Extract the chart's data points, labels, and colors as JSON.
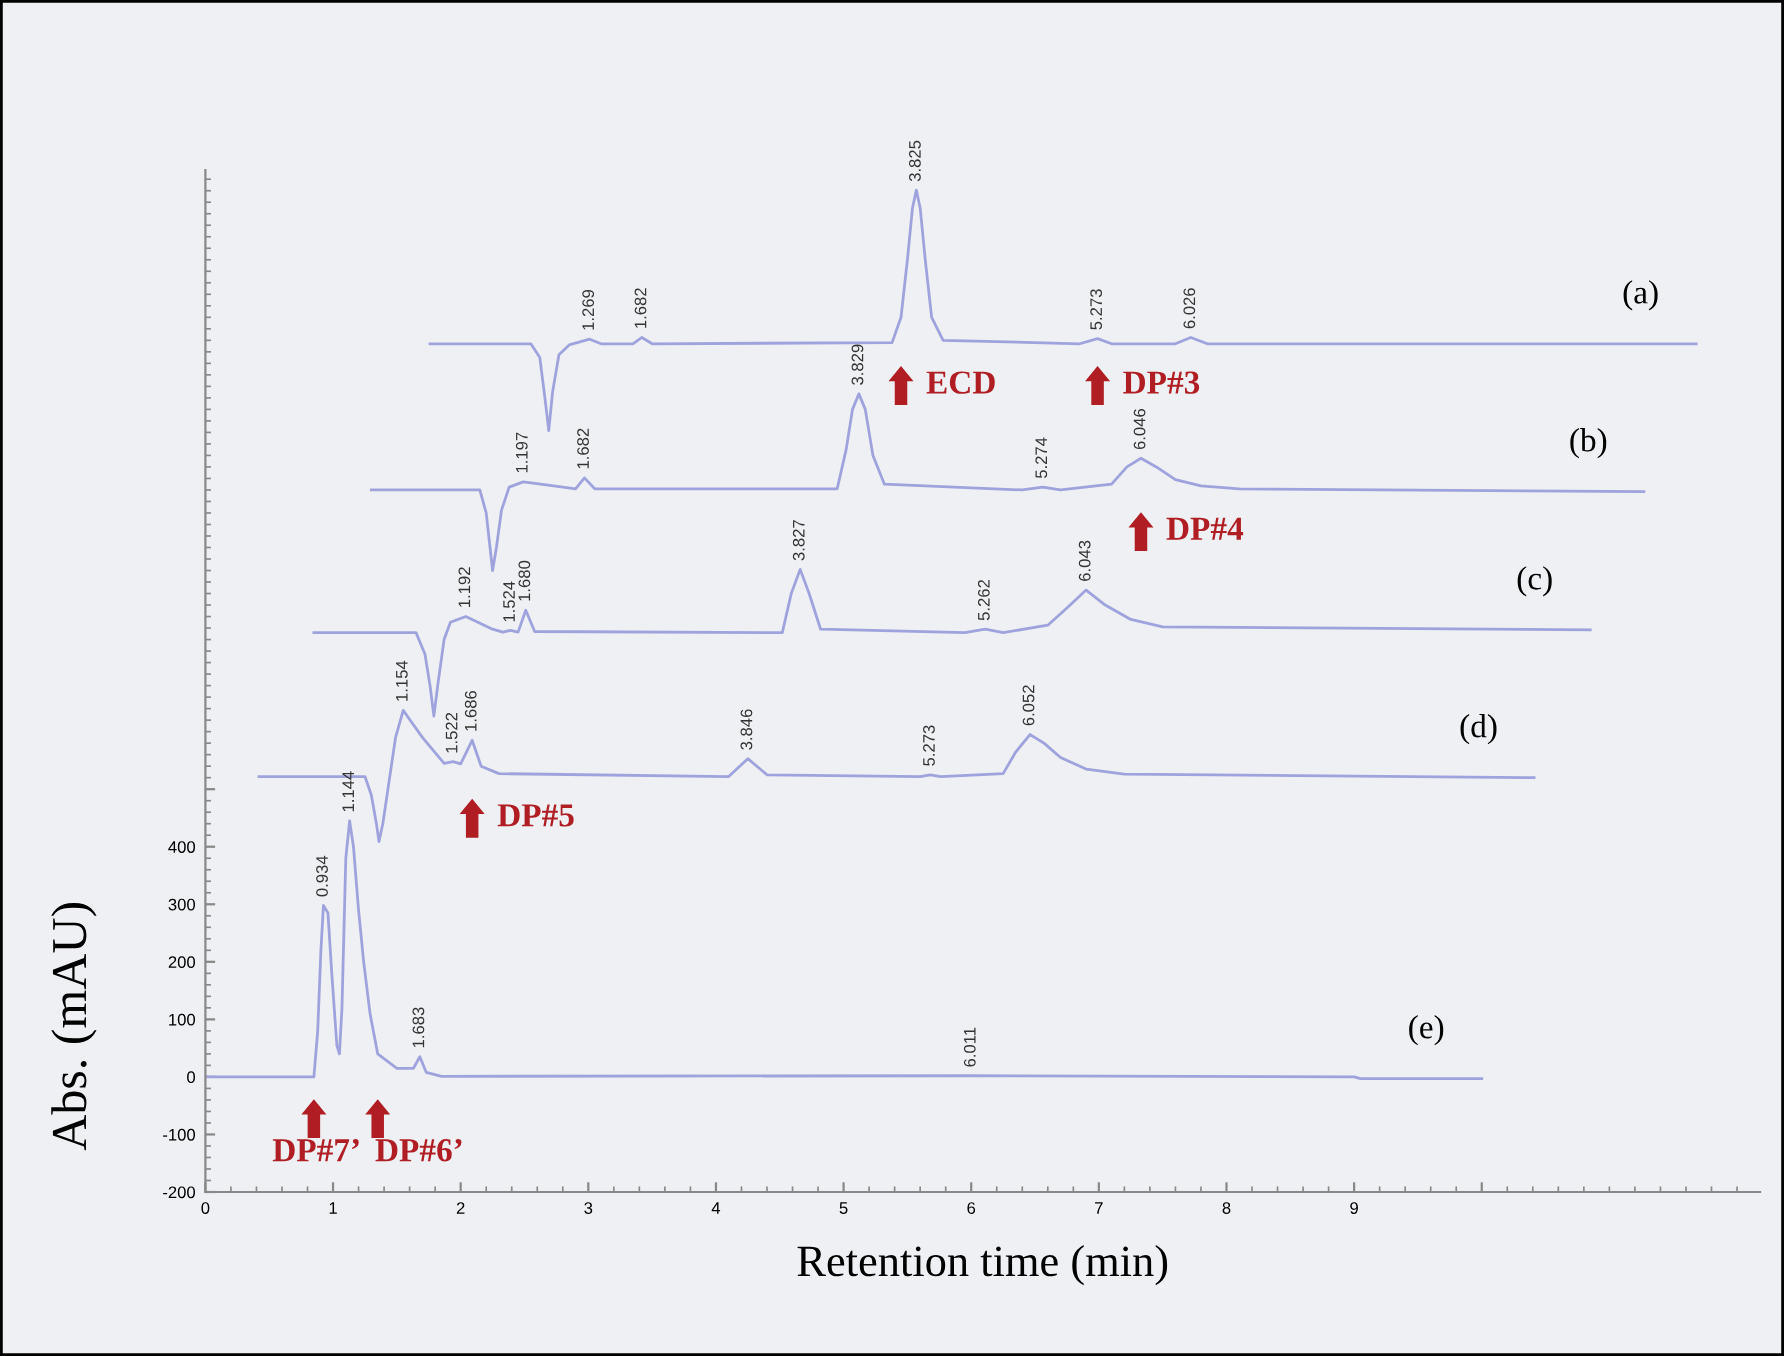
{
  "chart_data": {
    "type": "line",
    "xlabel": "Retention time (min)",
    "ylabel": "Abs. (mAU)",
    "xlim": [
      0,
      12.18
    ],
    "ylim": [
      -200,
      1576
    ],
    "xticks": [
      0,
      1,
      2,
      3,
      4,
      5,
      6,
      7,
      8,
      9,
      {
        "value": 10,
        "label": null
      }
    ],
    "yticks": [
      -200,
      -100,
      0,
      100,
      200,
      300,
      400,
      {
        "value": 500,
        "label": null
      }
    ],
    "grid": false,
    "legend": false,
    "marker": "none",
    "line_style": "solid",
    "series": [
      {
        "name": "(a)",
        "color": "#9fa3dd",
        "x": [
          1.76,
          2.55,
          2.62,
          2.66,
          2.69,
          2.72,
          2.77,
          2.85,
          3.01,
          3.1,
          3.35,
          3.42,
          3.5,
          5.38,
          5.45,
          5.5,
          5.54,
          5.57,
          5.6,
          5.64,
          5.69,
          5.78,
          6.85,
          6.99,
          7.1,
          7.6,
          7.72,
          7.85,
          11.68
        ],
        "values": [
          1274,
          1274,
          1250,
          1180,
          1123,
          1190,
          1255,
          1272,
          1282,
          1274,
          1274,
          1285,
          1274,
          1276,
          1320,
          1420,
          1510,
          1541,
          1510,
          1420,
          1320,
          1280,
          1274,
          1283,
          1274,
          1274,
          1285,
          1274,
          1274
        ]
      },
      {
        "name": "(b)",
        "color": "#9fa3dd",
        "x": [
          1.3,
          2.15,
          2.2,
          2.23,
          2.25,
          2.28,
          2.32,
          2.38,
          2.49,
          2.7,
          2.9,
          2.97,
          3.05,
          4.95,
          5.02,
          5.07,
          5.12,
          5.17,
          5.23,
          5.32,
          6.4,
          6.56,
          6.7,
          7.1,
          7.22,
          7.33,
          7.45,
          7.6,
          7.8,
          8.1,
          11.27
        ],
        "values": [
          1020,
          1020,
          980,
          920,
          880,
          920,
          985,
          1025,
          1034,
          1028,
          1022,
          1041,
          1022,
          1022,
          1090,
          1160,
          1187,
          1160,
          1080,
          1030,
          1020,
          1025,
          1020,
          1030,
          1060,
          1075,
          1060,
          1038,
          1027,
          1022,
          1017
        ]
      },
      {
        "name": "(c)",
        "color": "#9fa3dd",
        "x": [
          0.85,
          1.65,
          1.72,
          1.76,
          1.79,
          1.82,
          1.87,
          1.92,
          2.04,
          2.25,
          2.33,
          2.39,
          2.45,
          2.51,
          2.58,
          4.52,
          4.59,
          4.66,
          4.73,
          4.82,
          5.95,
          6.11,
          6.25,
          6.6,
          6.75,
          6.9,
          7.05,
          7.25,
          7.5,
          10.85
        ],
        "values": [
          772,
          772,
          735,
          680,
          627,
          680,
          760,
          790,
          800,
          778,
          773,
          776,
          773,
          811,
          774,
          772,
          840,
          882,
          840,
          778,
          772,
          778,
          772,
          785,
          815,
          846,
          820,
          795,
          782,
          777
        ]
      },
      {
        "name": "(d)",
        "color": "#9fa3dd",
        "x": [
          0.42,
          1.25,
          1.3,
          1.34,
          1.36,
          1.39,
          1.43,
          1.49,
          1.55,
          1.62,
          1.7,
          1.87,
          1.94,
          2.0,
          2.09,
          2.16,
          2.3,
          4.1,
          4.25,
          4.4,
          5.6,
          5.68,
          5.76,
          6.25,
          6.35,
          6.46,
          6.57,
          6.7,
          6.9,
          7.2,
          10.41
        ],
        "values": [
          522,
          522,
          490,
          440,
          409,
          440,
          500,
          590,
          637,
          615,
          590,
          545,
          548,
          544,
          585,
          540,
          527,
          522,
          553,
          525,
          522,
          525,
          522,
          527,
          565,
          595,
          580,
          555,
          535,
          526,
          520
        ]
      },
      {
        "name": "(e)",
        "color": "#9fa3dd",
        "x": [
          0,
          0.85,
          0.88,
          0.905,
          0.925,
          0.96,
          0.99,
          1.03,
          1.05,
          1.07,
          1.1,
          1.13,
          1.16,
          1.2,
          1.24,
          1.29,
          1.35,
          1.5,
          1.63,
          1.68,
          1.73,
          1.85,
          6.0,
          9.0,
          9.05,
          10.0
        ],
        "values": [
          0,
          0,
          80,
          220,
          298,
          285,
          180,
          55,
          40,
          120,
          380,
          445,
          400,
          290,
          200,
          110,
          40,
          15,
          15,
          35,
          8,
          1,
          2,
          0,
          -3,
          -3
        ]
      }
    ],
    "annotations": [
      {
        "text": "1.269",
        "x": 3.01,
        "y": 1282
      },
      {
        "text": "1.682",
        "x": 3.42,
        "y": 1285
      },
      {
        "text": "3.825",
        "x": 5.57,
        "y": 1541
      },
      {
        "text": "5.273",
        "x": 6.99,
        "y": 1283
      },
      {
        "text": "6.026",
        "x": 7.72,
        "y": 1285
      },
      {
        "text": "1.197",
        "x": 2.49,
        "y": 1034
      },
      {
        "text": "1.682",
        "x": 2.97,
        "y": 1041
      },
      {
        "text": "3.829",
        "x": 5.12,
        "y": 1187
      },
      {
        "text": "5.274",
        "x": 6.56,
        "y": 1025
      },
      {
        "text": "6.046",
        "x": 7.33,
        "y": 1075
      },
      {
        "text": "1.192",
        "x": 2.04,
        "y": 800
      },
      {
        "text": "1.524",
        "x": 2.39,
        "y": 775
      },
      {
        "text": "1.680",
        "x": 2.51,
        "y": 811
      },
      {
        "text": "3.827",
        "x": 4.66,
        "y": 882
      },
      {
        "text": "5.262",
        "x": 6.11,
        "y": 778
      },
      {
        "text": "6.043",
        "x": 6.9,
        "y": 846
      },
      {
        "text": "1.154",
        "x": 1.55,
        "y": 637
      },
      {
        "text": "1.522",
        "x": 1.94,
        "y": 547
      },
      {
        "text": "1.686",
        "x": 2.09,
        "y": 585
      },
      {
        "text": "3.846",
        "x": 4.25,
        "y": 553
      },
      {
        "text": "5.273",
        "x": 5.68,
        "y": 525
      },
      {
        "text": "6.052",
        "x": 6.46,
        "y": 595
      },
      {
        "text": "0.934",
        "x": 0.925,
        "y": 298
      },
      {
        "text": "1.144",
        "x": 1.13,
        "y": 445
      },
      {
        "text": "1.683",
        "x": 1.68,
        "y": 35
      },
      {
        "text": "6.011",
        "x": 6.0,
        "y": 2
      },
      {
        "text": "ECD",
        "x": 5.45,
        "y": 1320
      },
      {
        "text": "DP#3",
        "x": 6.99,
        "y": 1283
      },
      {
        "text": "DP#4",
        "x": 7.33,
        "y": 1075
      },
      {
        "text": "DP#5",
        "x": 2.09,
        "y": 585
      },
      {
        "text": "DP#7’",
        "x": 0.85,
        "y": 0
      },
      {
        "text": "DP#6’",
        "x": 1.35,
        "y": 40
      }
    ]
  }
}
